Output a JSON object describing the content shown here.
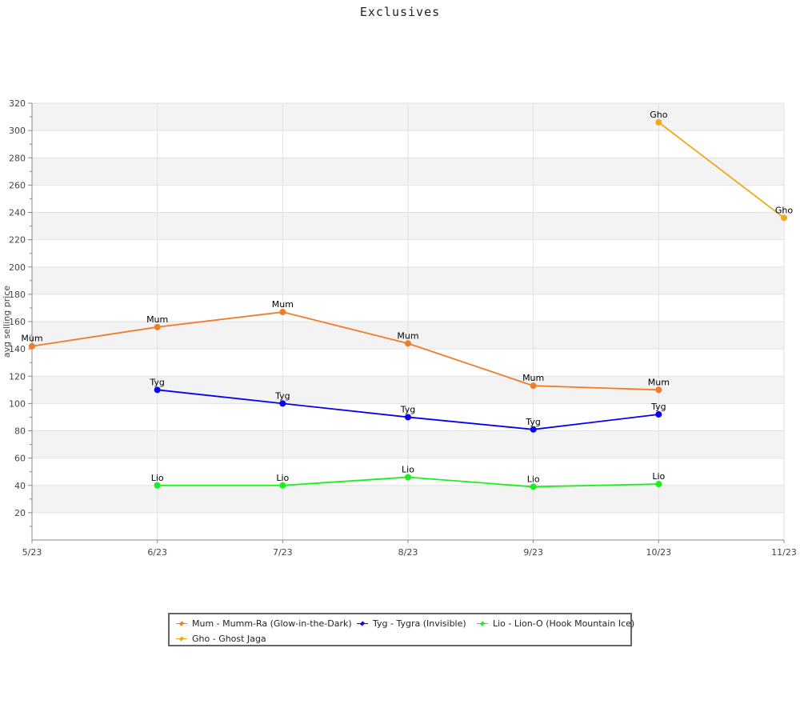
{
  "chart_data": {
    "type": "line",
    "title": "Exclusives",
    "xlabel": "",
    "ylabel": "avg selling price",
    "categories": [
      "5/23",
      "6/23",
      "7/23",
      "8/23",
      "9/23",
      "10/23",
      "11/23"
    ],
    "ylim": [
      0,
      320
    ],
    "yticks": [
      20,
      40,
      60,
      80,
      100,
      120,
      140,
      160,
      180,
      200,
      220,
      240,
      260,
      280,
      300,
      320
    ],
    "grid": true,
    "legend_position": "bottom",
    "series": [
      {
        "name": "Mum - Mumm-Ra (Glow-in-the-Dark)",
        "label": "Mum",
        "color": "#f07d2a",
        "values": [
          142,
          156,
          167,
          144,
          113,
          110,
          null
        ]
      },
      {
        "name": "Tyg - Tygra (Invisible)",
        "label": "Tyg",
        "color": "#0a00f0",
        "values": [
          null,
          110,
          100,
          90,
          81,
          92,
          null
        ]
      },
      {
        "name": "Lio - Lion-O (Hook Mountain Ice)",
        "label": "Lio",
        "color": "#1af01a",
        "values": [
          null,
          40,
          40,
          46,
          39,
          41,
          null
        ]
      },
      {
        "name": "Gho - Ghost Jaga",
        "label": "Gho",
        "color": "#f0a91a",
        "values": [
          null,
          null,
          null,
          null,
          null,
          306,
          236
        ]
      }
    ]
  }
}
